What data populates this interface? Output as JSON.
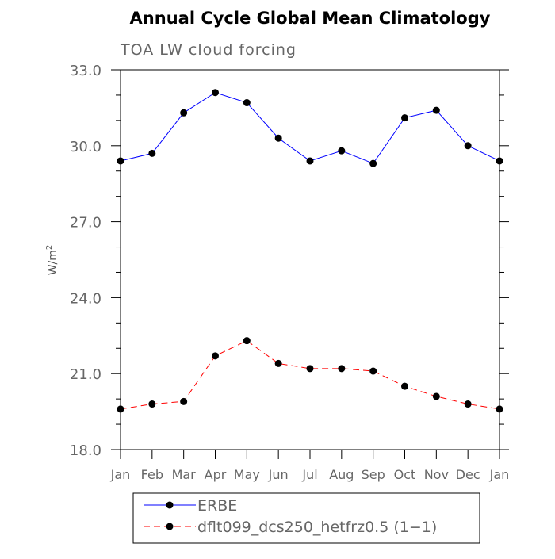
{
  "chart_data": {
    "type": "line",
    "title": "Annual Cycle Global Mean Climatology",
    "subtitle": "TOA LW cloud forcing",
    "ylabel_base": "W/m",
    "ylabel_sup": "2",
    "ylim": [
      18.0,
      33.0
    ],
    "yticks": [
      "18.0",
      "21.0",
      "24.0",
      "27.0",
      "30.0",
      "33.0"
    ],
    "categories": [
      "Jan",
      "Feb",
      "Mar",
      "Apr",
      "May",
      "Jun",
      "Jul",
      "Aug",
      "Sep",
      "Oct",
      "Nov",
      "Dec",
      "Jan"
    ],
    "grid": false,
    "legend_position": "bottom",
    "series": [
      {
        "name": "ERBE",
        "color": "#0000ff",
        "dash": "solid",
        "values": [
          29.4,
          29.7,
          31.3,
          32.1,
          31.7,
          30.3,
          29.4,
          29.8,
          29.3,
          31.1,
          31.4,
          30.0,
          29.4
        ]
      },
      {
        "name": "dflt099_dcs250_hetfrz0.5 (1−1)",
        "color": "#ff0000",
        "dash": "dashed",
        "values": [
          19.6,
          19.8,
          19.9,
          21.7,
          22.3,
          21.4,
          21.2,
          21.2,
          21.1,
          20.5,
          20.1,
          19.8,
          19.6
        ]
      }
    ]
  }
}
